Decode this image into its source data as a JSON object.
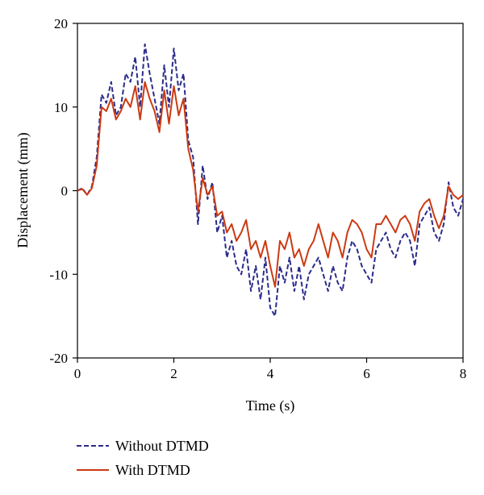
{
  "chart_data": {
    "type": "line",
    "xlabel": "Time (s)",
    "ylabel": "Displacement (mm)",
    "xlim": [
      0,
      8
    ],
    "ylim": [
      -20,
      20
    ],
    "x_ticks": [
      0,
      2,
      4,
      6,
      8
    ],
    "y_ticks": [
      -20,
      -10,
      0,
      10,
      20
    ],
    "x_tick_labels": [
      "0",
      "2",
      "4",
      "6",
      "8"
    ],
    "y_tick_labels": [
      "-20",
      "-10",
      "0",
      "10",
      "20"
    ],
    "grid": false,
    "legend_position": "bottom-left-outside",
    "series": [
      {
        "name": "Without DTMD",
        "color": "#2b2b8c",
        "style": "dashed",
        "x": [
          0,
          0.1,
          0.2,
          0.3,
          0.4,
          0.5,
          0.6,
          0.7,
          0.8,
          0.9,
          1.0,
          1.1,
          1.2,
          1.3,
          1.4,
          1.5,
          1.6,
          1.7,
          1.8,
          1.9,
          2.0,
          2.1,
          2.2,
          2.3,
          2.4,
          2.5,
          2.6,
          2.7,
          2.8,
          2.9,
          3.0,
          3.1,
          3.2,
          3.3,
          3.4,
          3.5,
          3.6,
          3.7,
          3.8,
          3.9,
          4.0,
          4.1,
          4.2,
          4.3,
          4.4,
          4.5,
          4.6,
          4.7,
          4.8,
          4.9,
          5.0,
          5.1,
          5.2,
          5.3,
          5.4,
          5.5,
          5.6,
          5.7,
          5.8,
          5.9,
          6.0,
          6.1,
          6.2,
          6.3,
          6.4,
          6.5,
          6.6,
          6.7,
          6.8,
          6.9,
          7.0,
          7.1,
          7.2,
          7.3,
          7.4,
          7.5,
          7.6,
          7.7,
          7.8,
          7.9,
          8.0
        ],
        "values": [
          0,
          0.3,
          -0.5,
          0.5,
          4,
          11.5,
          10.5,
          13,
          9,
          10,
          14,
          13,
          16,
          10,
          17.5,
          14,
          11,
          8,
          15,
          10,
          17,
          12,
          14,
          6,
          4,
          -4,
          3,
          -1,
          1,
          -5,
          -3,
          -8,
          -6,
          -9,
          -10,
          -7,
          -12,
          -9,
          -13,
          -8,
          -14,
          -15,
          -9,
          -11,
          -8,
          -12,
          -9,
          -13,
          -10,
          -9,
          -8,
          -10,
          -12,
          -9,
          -11,
          -12,
          -8,
          -6,
          -7,
          -9,
          -10,
          -11,
          -7,
          -6,
          -5,
          -7,
          -8,
          -6,
          -5,
          -6,
          -9,
          -4,
          -3,
          -2,
          -5,
          -6,
          -4,
          1,
          -2,
          -3,
          -1
        ]
      },
      {
        "name": "With DTMD",
        "color": "#cc3a12",
        "style": "solid",
        "x": [
          0,
          0.1,
          0.2,
          0.3,
          0.4,
          0.5,
          0.6,
          0.7,
          0.8,
          0.9,
          1.0,
          1.1,
          1.2,
          1.3,
          1.4,
          1.5,
          1.6,
          1.7,
          1.8,
          1.9,
          2.0,
          2.1,
          2.2,
          2.3,
          2.4,
          2.5,
          2.6,
          2.7,
          2.8,
          2.9,
          3.0,
          3.1,
          3.2,
          3.3,
          3.4,
          3.5,
          3.6,
          3.7,
          3.8,
          3.9,
          4.0,
          4.1,
          4.2,
          4.3,
          4.4,
          4.5,
          4.6,
          4.7,
          4.8,
          4.9,
          5.0,
          5.1,
          5.2,
          5.3,
          5.4,
          5.5,
          5.6,
          5.7,
          5.8,
          5.9,
          6.0,
          6.1,
          6.2,
          6.3,
          6.4,
          6.5,
          6.6,
          6.7,
          6.8,
          6.9,
          7.0,
          7.1,
          7.2,
          7.3,
          7.4,
          7.5,
          7.6,
          7.7,
          7.8,
          7.9,
          8.0
        ],
        "values": [
          0,
          0.2,
          -0.5,
          0.3,
          3,
          10,
          9.5,
          11,
          8.5,
          9.5,
          11,
          10,
          12.5,
          8.5,
          13,
          11,
          9.5,
          7,
          12,
          8,
          12.5,
          9,
          11,
          5,
          2.5,
          -2.5,
          1.5,
          -0.5,
          0.5,
          -3,
          -2.5,
          -5,
          -4,
          -6,
          -5,
          -3.5,
          -7,
          -6,
          -8,
          -6,
          -9,
          -11.5,
          -6,
          -7,
          -5,
          -8,
          -7,
          -9,
          -7,
          -6,
          -4,
          -6,
          -8,
          -5,
          -6,
          -8,
          -5,
          -3.5,
          -4,
          -5,
          -7,
          -8,
          -4,
          -4,
          -3,
          -4,
          -5,
          -3.5,
          -3,
          -4,
          -6,
          -2.5,
          -1.5,
          -1,
          -3,
          -4.5,
          -3,
          0.5,
          -0.5,
          -1,
          -0.5
        ]
      }
    ]
  }
}
